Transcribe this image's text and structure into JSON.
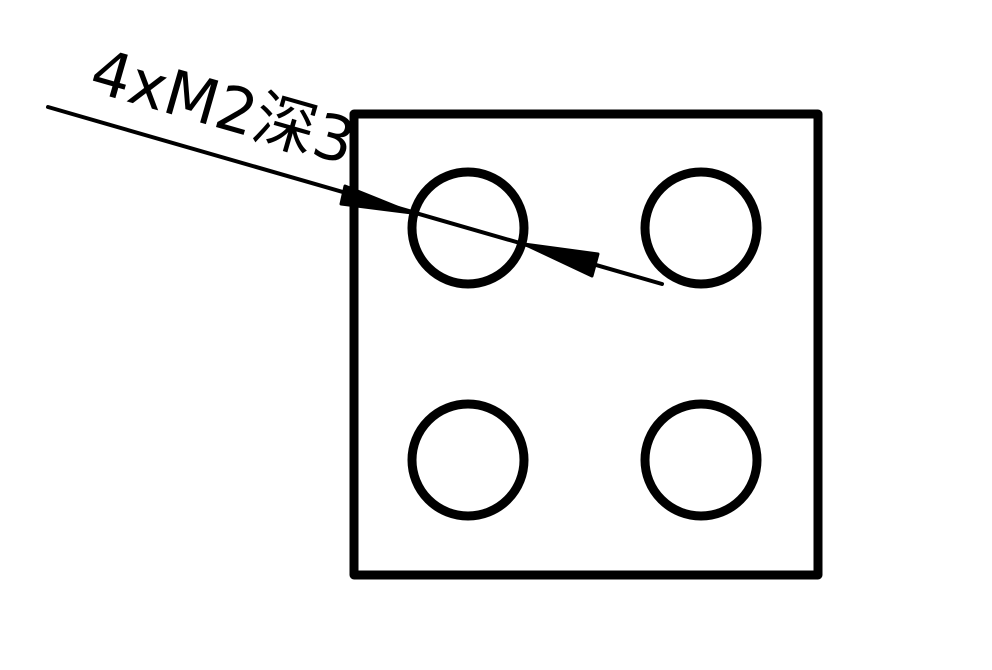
{
  "drawing": {
    "callout": {
      "label": "4xM2深3"
    },
    "hole_count": 4,
    "line_color": "#000000",
    "background_color": "#ffffff"
  }
}
